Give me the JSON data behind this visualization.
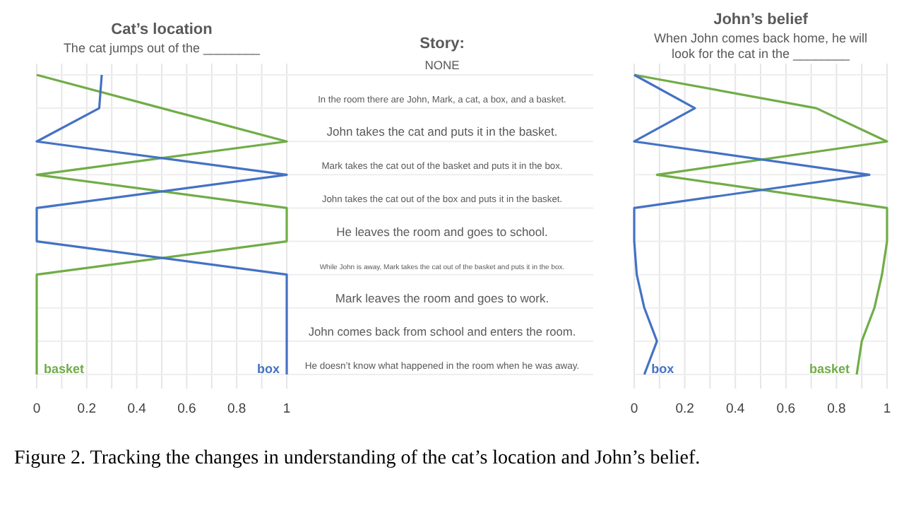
{
  "chart_data": [
    {
      "type": "line",
      "title": "Cat’s location",
      "subtitle": "The cat jumps out of the ________",
      "ylabel": "Story:",
      "orientation": "horizontal",
      "categories": [
        "NONE",
        "In the room there are John, Mark, a cat, a box, and a basket.",
        "John takes the cat and puts it in the basket.",
        "Mark takes the cat out of the basket and puts it in the box.",
        "John takes the cat out of the box and puts it in the basket.",
        "He leaves the room and goes to school.",
        "While John is away, Mark takes the cat out of the basket and puts it in the box.",
        "Mark leaves the room and goes to work.",
        "John comes back from school and enters the room.",
        "He doesn’t know what happened in the room when he was away."
      ],
      "series": [
        {
          "name": "basket",
          "color": "#70ad47",
          "values": [
            0,
            0.5,
            1,
            0,
            1,
            1,
            0,
            0,
            0,
            0
          ]
        },
        {
          "name": "box",
          "color": "#4472c4",
          "values": [
            0.26,
            0.25,
            0,
            1,
            0,
            0,
            1,
            1,
            1,
            1
          ]
        }
      ],
      "xlim": [
        0,
        1
      ],
      "xticks": [
        0,
        {
          "value": 0.1,
          "label": null
        },
        0.2,
        {
          "value": 0.3,
          "label": null
        },
        0.4,
        {
          "value": 0.5,
          "label": null
        },
        0.6,
        {
          "value": 0.7,
          "label": null
        },
        0.8,
        {
          "value": 0.9,
          "label": null
        },
        1
      ],
      "grid": true,
      "marker": "none",
      "line_style": "solid",
      "annotations": [
        "Figure 2. Tracking the changes in understanding of the cat’s location and John’s belief."
      ]
    },
    {
      "type": "line",
      "title": "John’s belief",
      "subtitle": "When John comes back home, he will look for the cat in the ________",
      "orientation": "horizontal",
      "categories": [
        null,
        null,
        null,
        null,
        null,
        null,
        null,
        null,
        null,
        null
      ],
      "series": [
        {
          "name": "basket",
          "color": "#70ad47",
          "values": [
            0,
            0.72,
            1,
            0.09,
            1,
            1,
            0.98,
            0.95,
            0.9,
            0.88
          ]
        },
        {
          "name": "box",
          "color": "#4472c4",
          "values": [
            0,
            0.24,
            0,
            0.93,
            0,
            0,
            0.01,
            0.04,
            0.09,
            0.04
          ]
        }
      ],
      "xlim": [
        0,
        1
      ],
      "xticks": [
        0,
        {
          "value": 0.1,
          "label": null
        },
        0.2,
        {
          "value": 0.3,
          "label": null
        },
        0.4,
        {
          "value": 0.5,
          "label": null
        },
        0.6,
        {
          "value": 0.7,
          "label": null
        },
        0.8,
        {
          "value": 0.9,
          "label": null
        },
        1
      ],
      "grid": true,
      "marker": "none",
      "line_style": "solid"
    }
  ]
}
